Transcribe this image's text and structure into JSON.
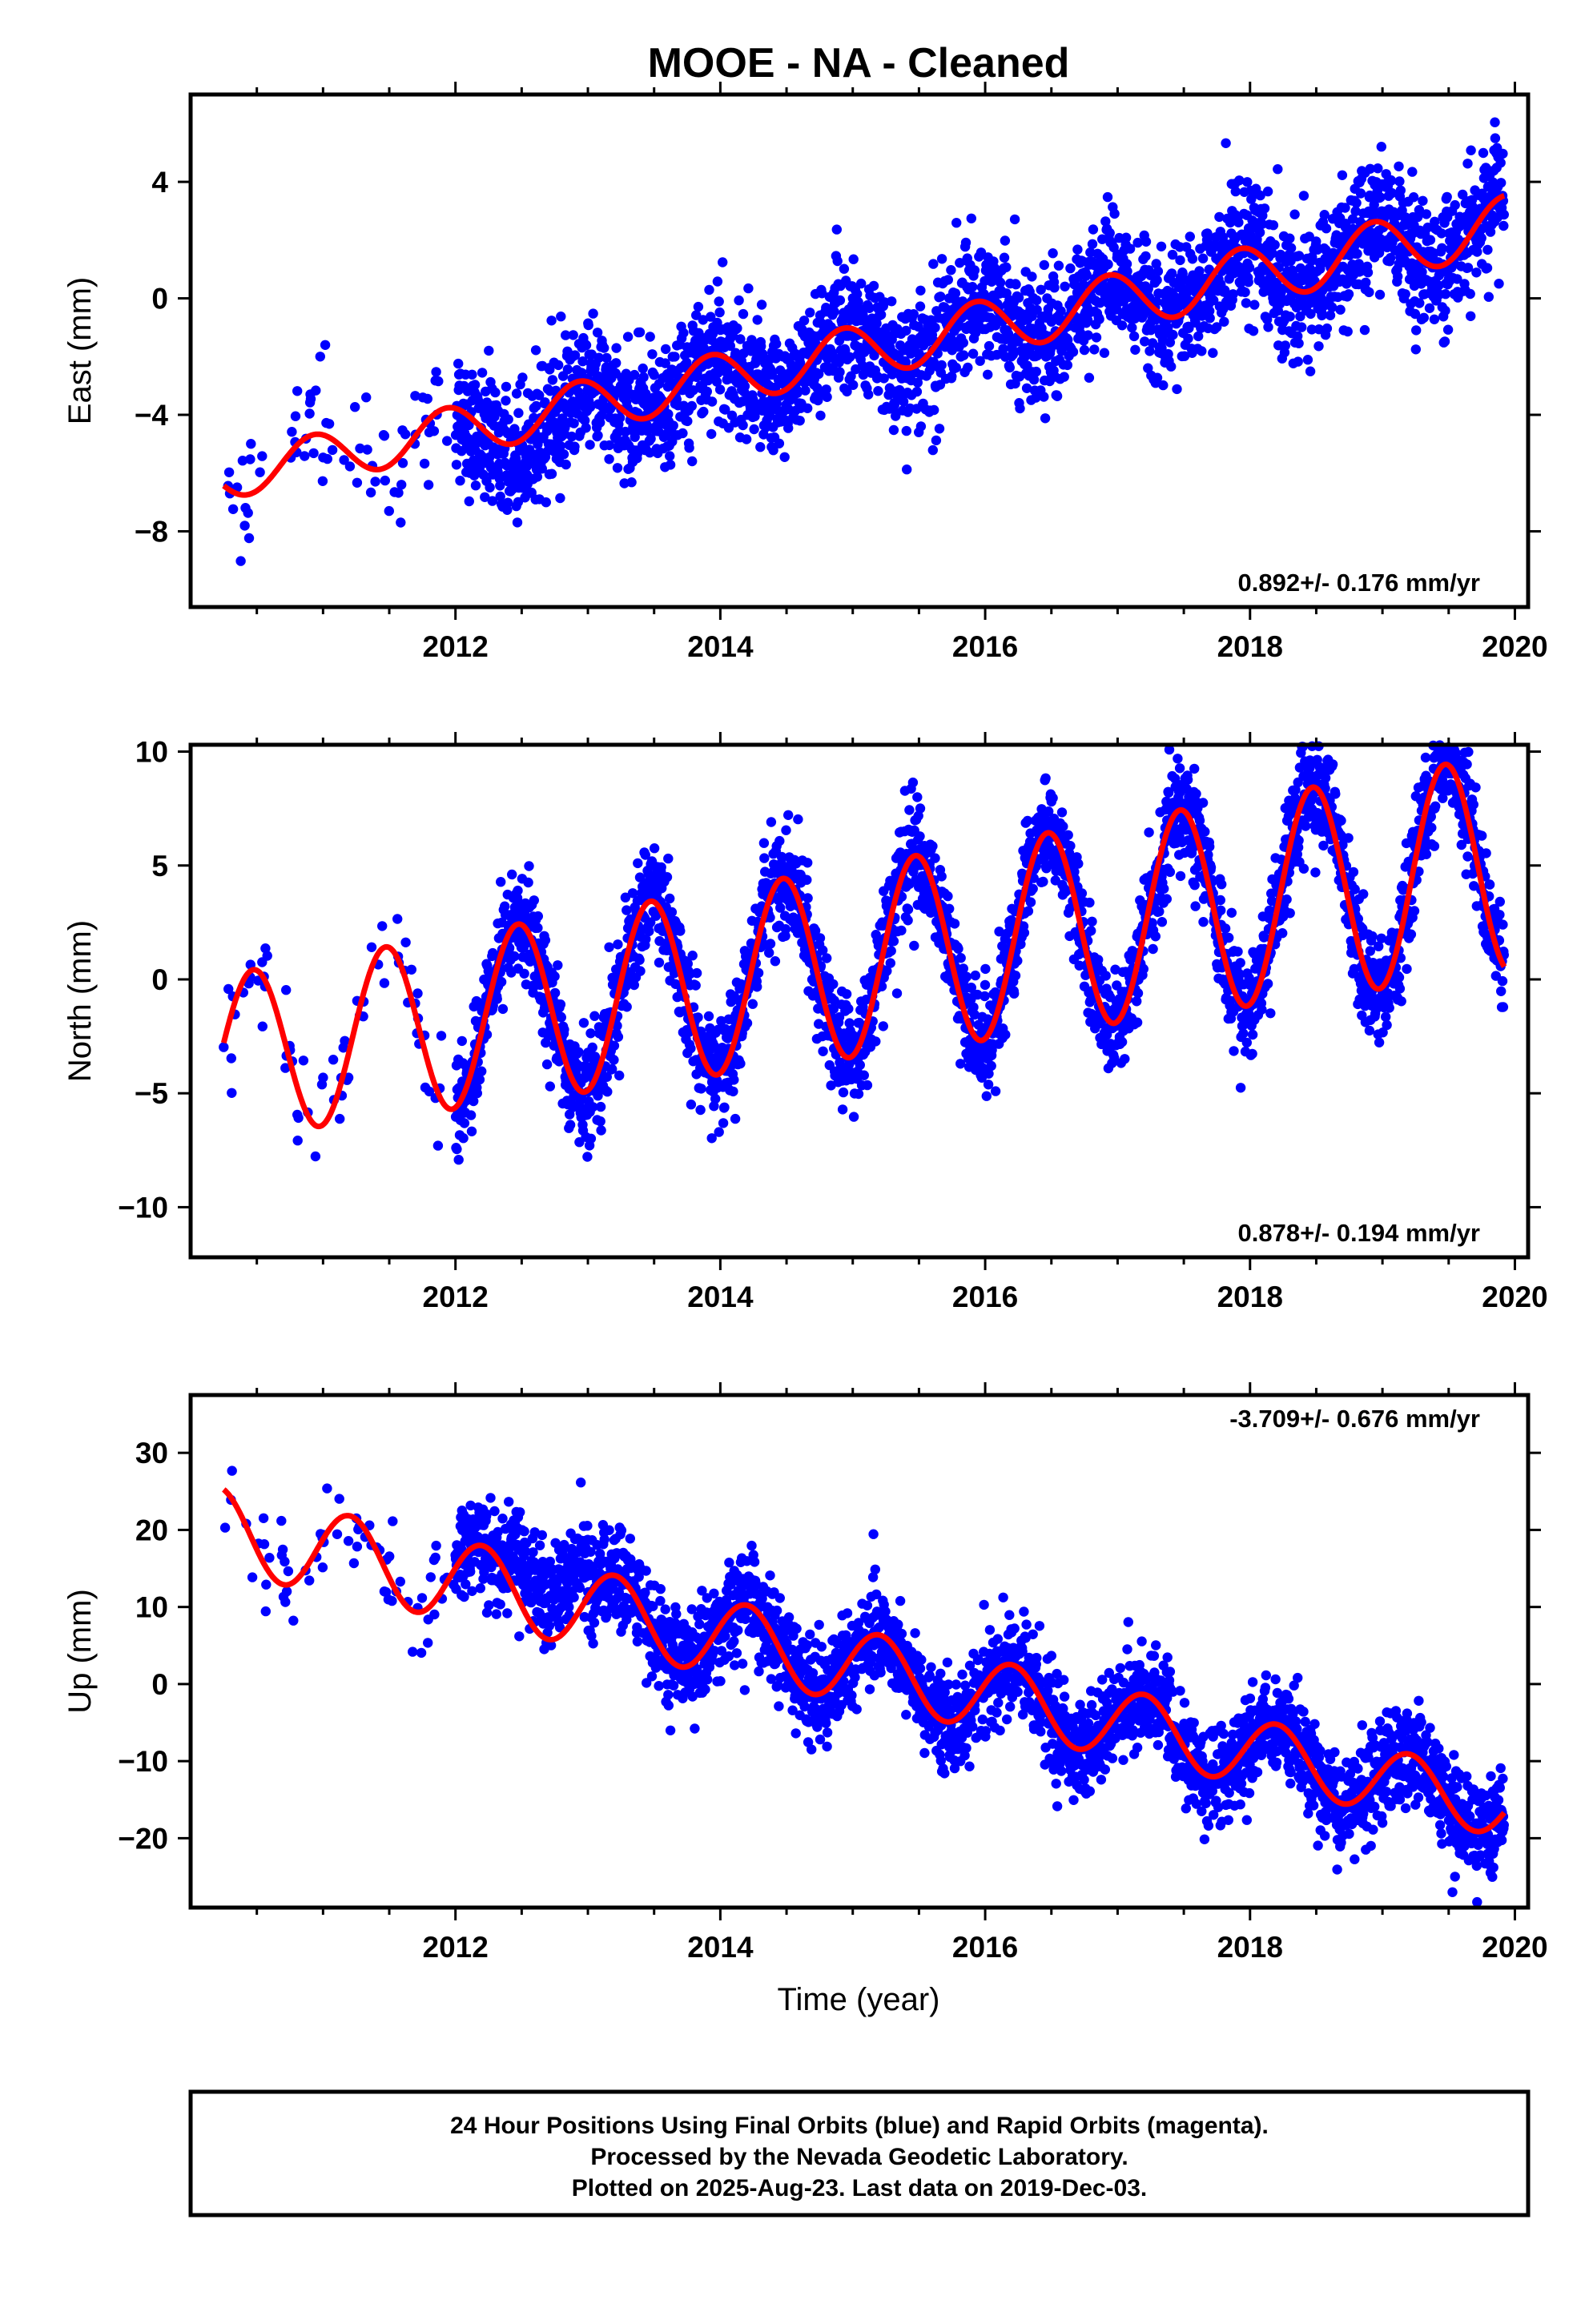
{
  "page_title": "MOOE  - NA - Cleaned",
  "xlabel": "Time (year)",
  "footer": {
    "lines": [
      "24 Hour Positions Using Final Orbits (blue) and Rapid Orbits (magenta).",
      "Processed by the Nevada Geodetic Laboratory.",
      "Plotted on 2025-Aug-23. Last data on 2019-Dec-03."
    ]
  },
  "colors": {
    "points": "#0000ff",
    "model": "#ff0000",
    "frame": "#000000"
  },
  "chart_data": [
    {
      "type": "scatter",
      "name": "east",
      "ylabel": "East (mm)",
      "rate_label": "0.892+/- 0.176 mm/yr",
      "rate_position": "bottom-right",
      "xlim": [
        2010.0,
        2020.1
      ],
      "ylim": [
        -10.6,
        7.0
      ],
      "x_ticks": [
        2012,
        2014,
        2016,
        2018,
        2020
      ],
      "x_tick_labels": [
        "2012",
        "2014",
        "2016",
        "2018",
        "2020"
      ],
      "y_ticks": [
        4,
        0,
        -4,
        -8
      ],
      "y_tick_labels": [
        "4",
        "0",
        "−4",
        "−8"
      ],
      "model": {
        "start": 2010.25,
        "end": 2019.92,
        "intercept": -6.1,
        "rate": 0.892,
        "amp_early": 0.8,
        "amp_late": 1.0,
        "phase": 2.0
      },
      "points": {
        "scatter": 1.1,
        "sample_rate": 1.0,
        "source": "seeded reconstruction from visible cloud"
      },
      "grid": false
    },
    {
      "type": "scatter",
      "name": "north",
      "ylabel": "North (mm)",
      "rate_label": "0.878+/- 0.194 mm/yr",
      "rate_position": "bottom-right",
      "xlim": [
        2010.0,
        2020.1
      ],
      "ylim": [
        -12.2,
        10.3
      ],
      "x_ticks": [
        2012,
        2014,
        2016,
        2018,
        2020
      ],
      "x_tick_labels": [
        "2012",
        "2014",
        "2016",
        "2018",
        "2020"
      ],
      "y_ticks": [
        10,
        5,
        0,
        -5,
        -10
      ],
      "y_tick_labels": [
        "10",
        "5",
        "0",
        "−5",
        "−10"
      ],
      "model": {
        "start": 2010.25,
        "end": 2019.92,
        "intercept": -3.4,
        "rate": 0.878,
        "amp_early": 3.6,
        "amp_late": 4.8,
        "phase": -1.4
      },
      "points": {
        "scatter": 1.2
      },
      "grid": false
    },
    {
      "type": "scatter",
      "name": "up",
      "ylabel": "Up (mm)",
      "rate_label": "-3.709+/- 0.676 mm/yr",
      "rate_position": "top-right",
      "xlim": [
        2010.0,
        2020.1
      ],
      "ylim": [
        -29.0,
        37.5
      ],
      "x_ticks": [
        2012,
        2014,
        2016,
        2018,
        2020
      ],
      "x_tick_labels": [
        "2012",
        "2014",
        "2016",
        "2018",
        "2020"
      ],
      "y_ticks": [
        30,
        20,
        10,
        0,
        -10,
        -20
      ],
      "y_tick_labels": [
        "30",
        "20",
        "10",
        "0",
        "−10",
        "−20"
      ],
      "model": {
        "start": 2010.25,
        "end": 2019.92,
        "intercept": 20.0,
        "rate": -3.709,
        "amp_early": 5.5,
        "amp_late": 4.0,
        "phase": 0.3
      },
      "points": {
        "scatter": 3.2
      },
      "grid": false
    }
  ]
}
